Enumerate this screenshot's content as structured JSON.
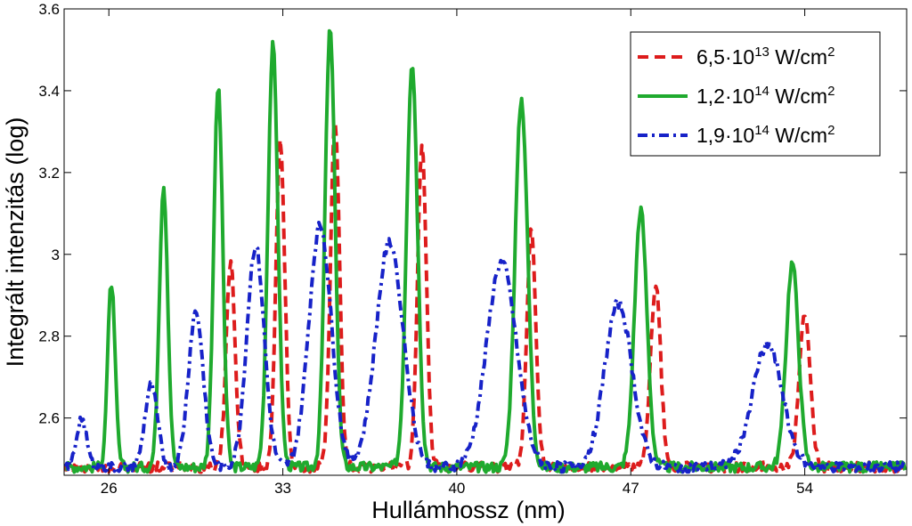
{
  "chart_data": {
    "type": "line",
    "xlabel": "Hullámhossz (nm)",
    "ylabel": "Integrált intenzitás (log)",
    "xlim": [
      24.2,
      58.1
    ],
    "ylim": [
      2.46,
      3.6
    ],
    "xticks": [
      "26",
      "33",
      "40",
      "47",
      "54"
    ],
    "yticks": [
      "2.6",
      "2.8",
      "3",
      "3.2",
      "3.4",
      "3.6"
    ],
    "grid": false,
    "legend_position": "top-right",
    "baseline": 2.48,
    "series": [
      {
        "name_parts": [
          "6,5·10",
          "13",
          " W/cm",
          "2"
        ],
        "color": "#dd1c1c",
        "dash": "dashed",
        "peaks": [
          {
            "x": 30.9,
            "y": 2.98,
            "w": 0.18
          },
          {
            "x": 32.9,
            "y": 3.27,
            "w": 0.18
          },
          {
            "x": 35.1,
            "y": 3.33,
            "w": 0.18
          },
          {
            "x": 38.6,
            "y": 3.26,
            "w": 0.18
          },
          {
            "x": 43.0,
            "y": 3.07,
            "w": 0.18
          },
          {
            "x": 48.0,
            "y": 2.93,
            "w": 0.2
          },
          {
            "x": 54.0,
            "y": 2.85,
            "w": 0.22
          }
        ]
      },
      {
        "name_parts": [
          "1,2·10",
          "14",
          " W/cm",
          "2"
        ],
        "color": "#1faa2e",
        "dash": "solid",
        "peaks": [
          {
            "x": 26.1,
            "y": 2.93,
            "w": 0.15
          },
          {
            "x": 28.2,
            "y": 3.17,
            "w": 0.17
          },
          {
            "x": 30.4,
            "y": 3.41,
            "w": 0.18
          },
          {
            "x": 32.6,
            "y": 3.51,
            "w": 0.2
          },
          {
            "x": 34.9,
            "y": 3.55,
            "w": 0.2
          },
          {
            "x": 38.2,
            "y": 3.47,
            "w": 0.22
          },
          {
            "x": 42.6,
            "y": 3.38,
            "w": 0.25
          },
          {
            "x": 47.4,
            "y": 3.11,
            "w": 0.25
          },
          {
            "x": 53.5,
            "y": 2.98,
            "w": 0.25
          }
        ]
      },
      {
        "name_parts": [
          "1,9·10",
          "14",
          " W/cm",
          "2"
        ],
        "color": "#1722c8",
        "dash": "dashdot",
        "peaks": [
          {
            "x": 24.9,
            "y": 2.6,
            "w": 0.2
          },
          {
            "x": 27.7,
            "y": 2.68,
            "w": 0.25
          },
          {
            "x": 29.5,
            "y": 2.86,
            "w": 0.3
          },
          {
            "x": 31.9,
            "y": 3.02,
            "w": 0.35
          },
          {
            "x": 34.5,
            "y": 3.07,
            "w": 0.45
          },
          {
            "x": 37.3,
            "y": 3.03,
            "w": 0.55
          },
          {
            "x": 41.8,
            "y": 2.98,
            "w": 0.6
          },
          {
            "x": 46.5,
            "y": 2.88,
            "w": 0.55
          },
          {
            "x": 52.5,
            "y": 2.78,
            "w": 0.6
          }
        ]
      }
    ]
  }
}
